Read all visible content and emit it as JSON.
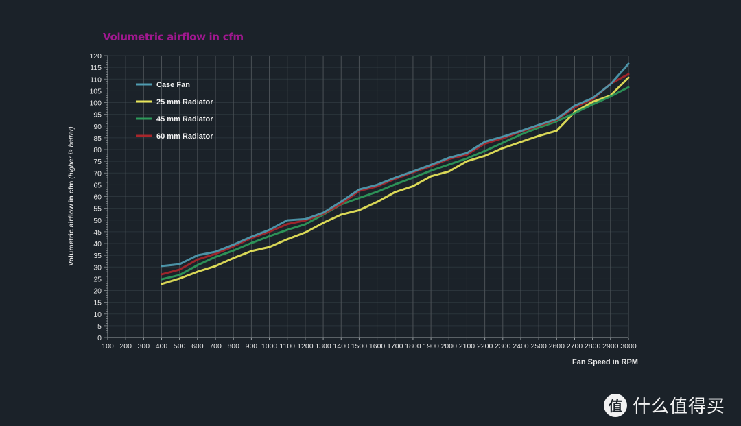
{
  "watermark": {
    "logo_char": "值",
    "text": "什么值得买"
  },
  "chart_data": {
    "type": "line",
    "title": "Volumetric airflow in cfm",
    "xlabel": "Fan Speed in RPM",
    "ylabel": "Volumetric airflow in cfm",
    "ylabel_note": "(higher is better)",
    "xlim": [
      100,
      3000
    ],
    "ylim": [
      0,
      120
    ],
    "x_ticks": [
      100,
      200,
      300,
      400,
      500,
      600,
      700,
      800,
      900,
      1000,
      1100,
      1200,
      1300,
      1400,
      1500,
      1600,
      1700,
      1800,
      1900,
      2000,
      2100,
      2200,
      2300,
      2400,
      2500,
      2600,
      2700,
      2800,
      2900,
      3000
    ],
    "y_ticks": [
      0,
      5,
      10,
      15,
      20,
      25,
      30,
      35,
      40,
      45,
      50,
      55,
      60,
      65,
      70,
      75,
      80,
      85,
      90,
      95,
      100,
      105,
      110,
      115,
      120
    ],
    "grid": true,
    "legend_position": "top-left",
    "x": [
      400,
      500,
      600,
      700,
      800,
      900,
      1000,
      1100,
      1200,
      1300,
      1400,
      1500,
      1600,
      1700,
      1800,
      1900,
      2000,
      2100,
      2200,
      2300,
      2400,
      2500,
      2600,
      2700,
      2800,
      2900,
      3000
    ],
    "series": [
      {
        "name": "Case Fan",
        "color": "#4f9bb0",
        "values": [
          30.4,
          31.2,
          35.0,
          36.5,
          39.5,
          42.9,
          45.8,
          49.9,
          50.4,
          53.1,
          57.8,
          63.0,
          65.0,
          68.0,
          70.7,
          73.5,
          76.5,
          78.5,
          83.3,
          85.5,
          87.9,
          90.5,
          93.0,
          98.7,
          101.9,
          107.8,
          116.5
        ]
      },
      {
        "name": "25 mm Radiator",
        "color": "#e8e65a",
        "values": [
          22.8,
          25.1,
          28.0,
          30.4,
          33.8,
          36.8,
          38.5,
          41.8,
          44.7,
          48.8,
          52.3,
          54.2,
          57.7,
          61.9,
          64.4,
          68.6,
          70.7,
          75.0,
          77.3,
          80.6,
          83.2,
          85.8,
          88.0,
          96.0,
          100.3,
          103.0,
          110.6
        ]
      },
      {
        "name": "45 mm Radiator",
        "color": "#2e9a5a",
        "values": [
          24.8,
          26.6,
          30.8,
          34.3,
          37.0,
          40.2,
          43.1,
          45.8,
          48.2,
          52.3,
          56.6,
          59.4,
          62.0,
          65.2,
          68.0,
          71.0,
          73.6,
          76.2,
          79.4,
          82.9,
          86.4,
          89.3,
          92.0,
          95.5,
          99.2,
          102.6,
          106.5
        ]
      },
      {
        "name": "60 mm Radiator",
        "color": "#a8262b",
        "values": [
          26.9,
          28.9,
          33.2,
          35.6,
          38.8,
          42.3,
          45.0,
          48.3,
          49.8,
          52.6,
          56.8,
          62.4,
          64.3,
          67.5,
          70.3,
          72.9,
          76.0,
          77.8,
          82.5,
          84.8,
          87.6,
          90.1,
          92.6,
          98.0,
          101.4,
          108.0,
          112.1
        ]
      }
    ]
  }
}
